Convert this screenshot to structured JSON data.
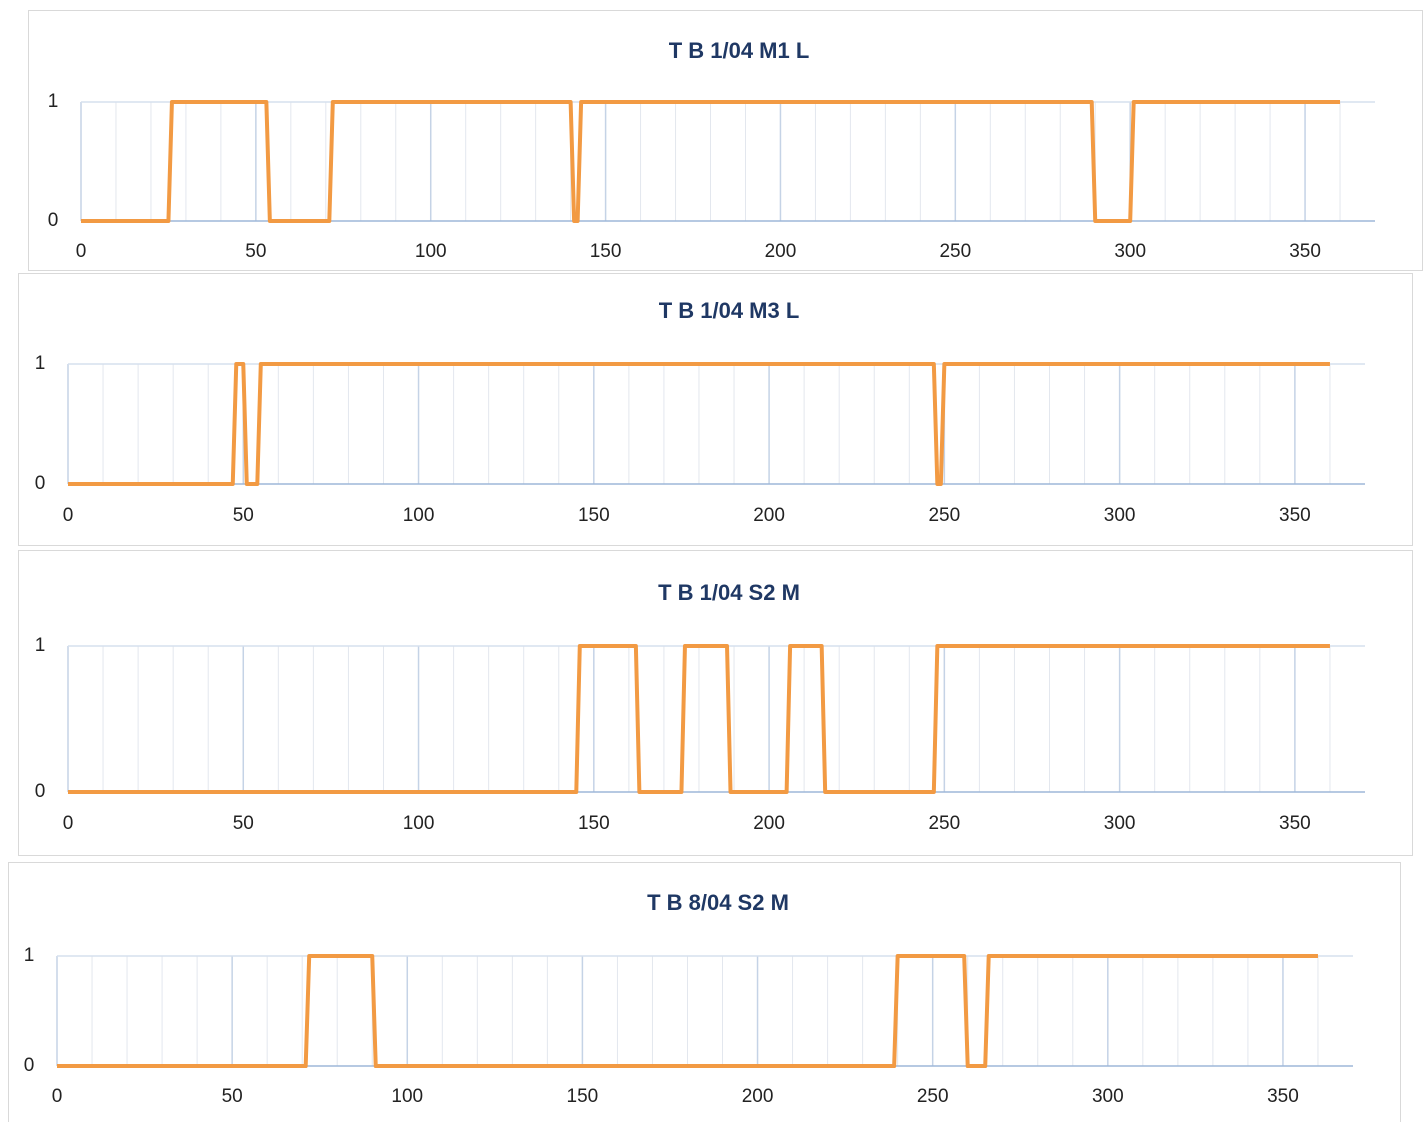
{
  "chart_data": [
    {
      "type": "line",
      "title": "T B 1/04 M1 L",
      "x": [
        0,
        25,
        26,
        53,
        54,
        71,
        72,
        140,
        141,
        142,
        143,
        289,
        290,
        300,
        301,
        360
      ],
      "series": [
        {
          "name": "T B 1/04 M1 L",
          "color": "#f29a43",
          "values": [
            0,
            0,
            1,
            1,
            0,
            0,
            1,
            1,
            0,
            0,
            1,
            1,
            0,
            0,
            1,
            1
          ]
        }
      ],
      "xlim": [
        0,
        370
      ],
      "xticks": [
        0,
        50,
        100,
        150,
        200,
        250,
        300,
        350
      ],
      "x_minor_step": 10,
      "ylim": [
        0,
        1
      ],
      "yticks": [
        0,
        1
      ],
      "grid": true
    },
    {
      "type": "line",
      "title": "T B 1/04 M3 L",
      "x": [
        0,
        47,
        48,
        50,
        51,
        54,
        55,
        247,
        248,
        249,
        250,
        360
      ],
      "series": [
        {
          "name": "T B 1/04 M3 L",
          "color": "#f29a43",
          "values": [
            0,
            0,
            1,
            1,
            0,
            0,
            1,
            1,
            0,
            0,
            1,
            1
          ]
        }
      ],
      "xlim": [
        0,
        370
      ],
      "xticks": [
        0,
        50,
        100,
        150,
        200,
        250,
        300,
        350
      ],
      "x_minor_step": 10,
      "ylim": [
        0,
        1
      ],
      "yticks": [
        0,
        1
      ],
      "grid": true
    },
    {
      "type": "line",
      "title": "T B 1/04 S2 M",
      "x": [
        0,
        145,
        146,
        162,
        163,
        175,
        176,
        188,
        189,
        205,
        206,
        215,
        216,
        247,
        248,
        360
      ],
      "series": [
        {
          "name": "T B 1/04 S2 M",
          "color": "#f29a43",
          "values": [
            0,
            0,
            1,
            1,
            0,
            0,
            1,
            1,
            0,
            0,
            1,
            1,
            0,
            0,
            1,
            1
          ]
        }
      ],
      "xlim": [
        0,
        370
      ],
      "xticks": [
        0,
        50,
        100,
        150,
        200,
        250,
        300,
        350
      ],
      "x_minor_step": 10,
      "ylim": [
        0,
        1
      ],
      "yticks": [
        0,
        1
      ],
      "grid": true
    },
    {
      "type": "line",
      "title": "T B 8/04 S2 M",
      "x": [
        0,
        71,
        72,
        90,
        91,
        239,
        240,
        259,
        260,
        265,
        266,
        360
      ],
      "series": [
        {
          "name": "T B 8/04 S2 M",
          "color": "#f29a43",
          "values": [
            0,
            0,
            1,
            1,
            0,
            0,
            1,
            1,
            0,
            0,
            1,
            1
          ]
        }
      ],
      "xlim": [
        0,
        370
      ],
      "xticks": [
        0,
        50,
        100,
        150,
        200,
        250,
        300,
        350
      ],
      "x_minor_step": 10,
      "ylim": [
        0,
        1
      ],
      "yticks": [
        0,
        1
      ],
      "grid": true
    }
  ]
}
